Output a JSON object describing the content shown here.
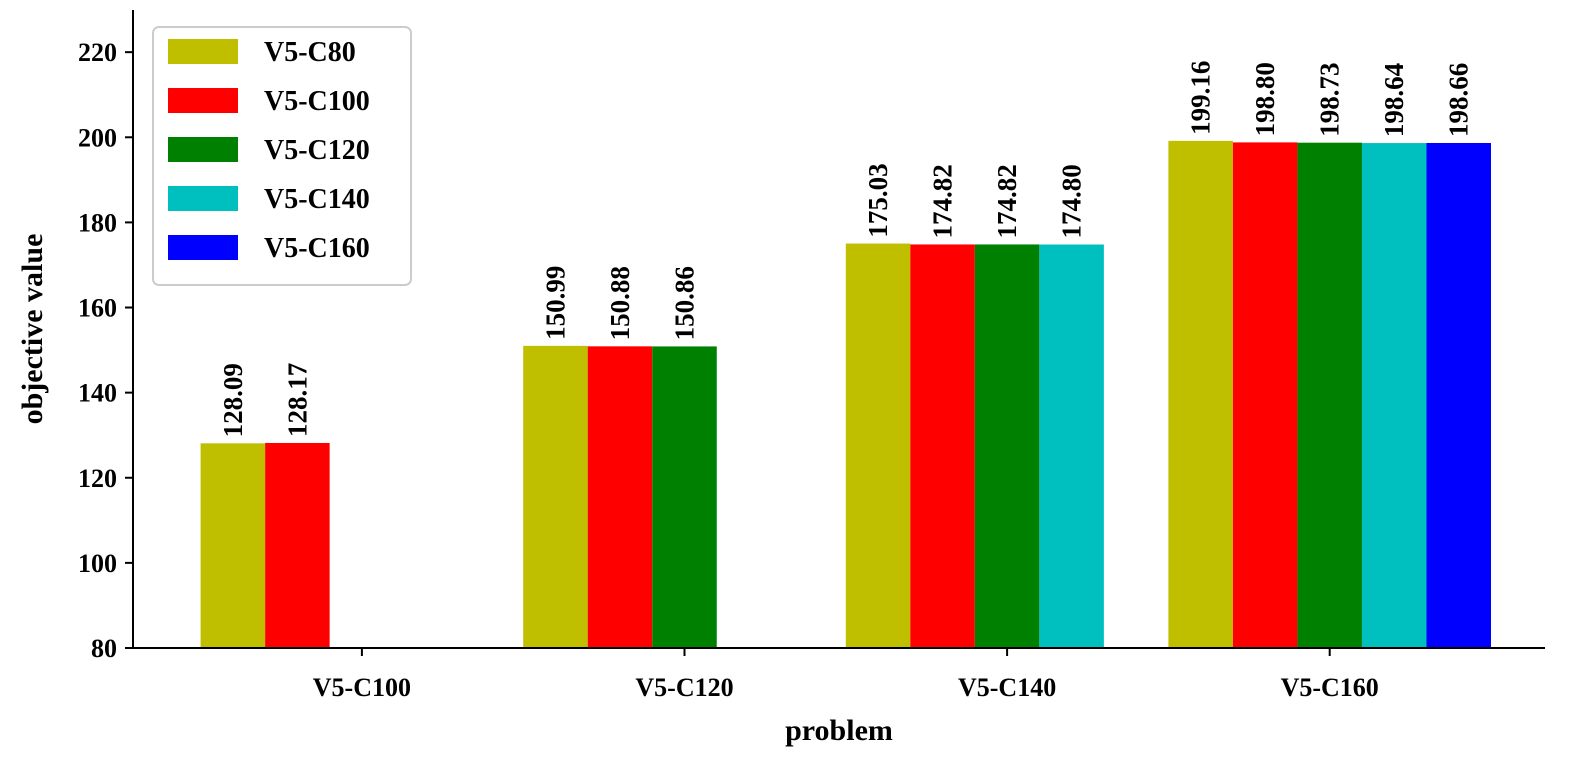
{
  "chart_data": {
    "type": "bar",
    "title": "",
    "xlabel": "problem",
    "ylabel": "objective value",
    "categories": [
      "V5-C100",
      "V5-C120",
      "V5-C140",
      "V5-C160"
    ],
    "ylim": [
      80,
      230
    ],
    "yticks": [
      80,
      100,
      120,
      140,
      160,
      180,
      200,
      220
    ],
    "grid": false,
    "legend_position": "top-left",
    "series": [
      {
        "name": "V5-C80",
        "color": "#bfbf00",
        "values": [
          128.09,
          150.99,
          175.03,
          199.16
        ],
        "labels": [
          "128.09",
          "150.99",
          "175.03",
          "199.16"
        ]
      },
      {
        "name": "V5-C100",
        "color": "#ff0000",
        "values": [
          128.17,
          150.88,
          174.82,
          198.8
        ],
        "labels": [
          "128.17",
          "150.88",
          "174.82",
          "198.80"
        ]
      },
      {
        "name": "V5-C120",
        "color": "#008000",
        "values": [
          null,
          150.86,
          174.82,
          198.73
        ],
        "labels": [
          null,
          "150.86",
          "174.82",
          "198.73"
        ]
      },
      {
        "name": "V5-C140",
        "color": "#00bfbf",
        "values": [
          null,
          null,
          174.8,
          198.64
        ],
        "labels": [
          null,
          null,
          "174.80",
          "198.64"
        ]
      },
      {
        "name": "V5-C160",
        "color": "#0000ff",
        "values": [
          null,
          null,
          null,
          198.66
        ],
        "labels": [
          null,
          null,
          null,
          "198.66"
        ]
      }
    ]
  }
}
